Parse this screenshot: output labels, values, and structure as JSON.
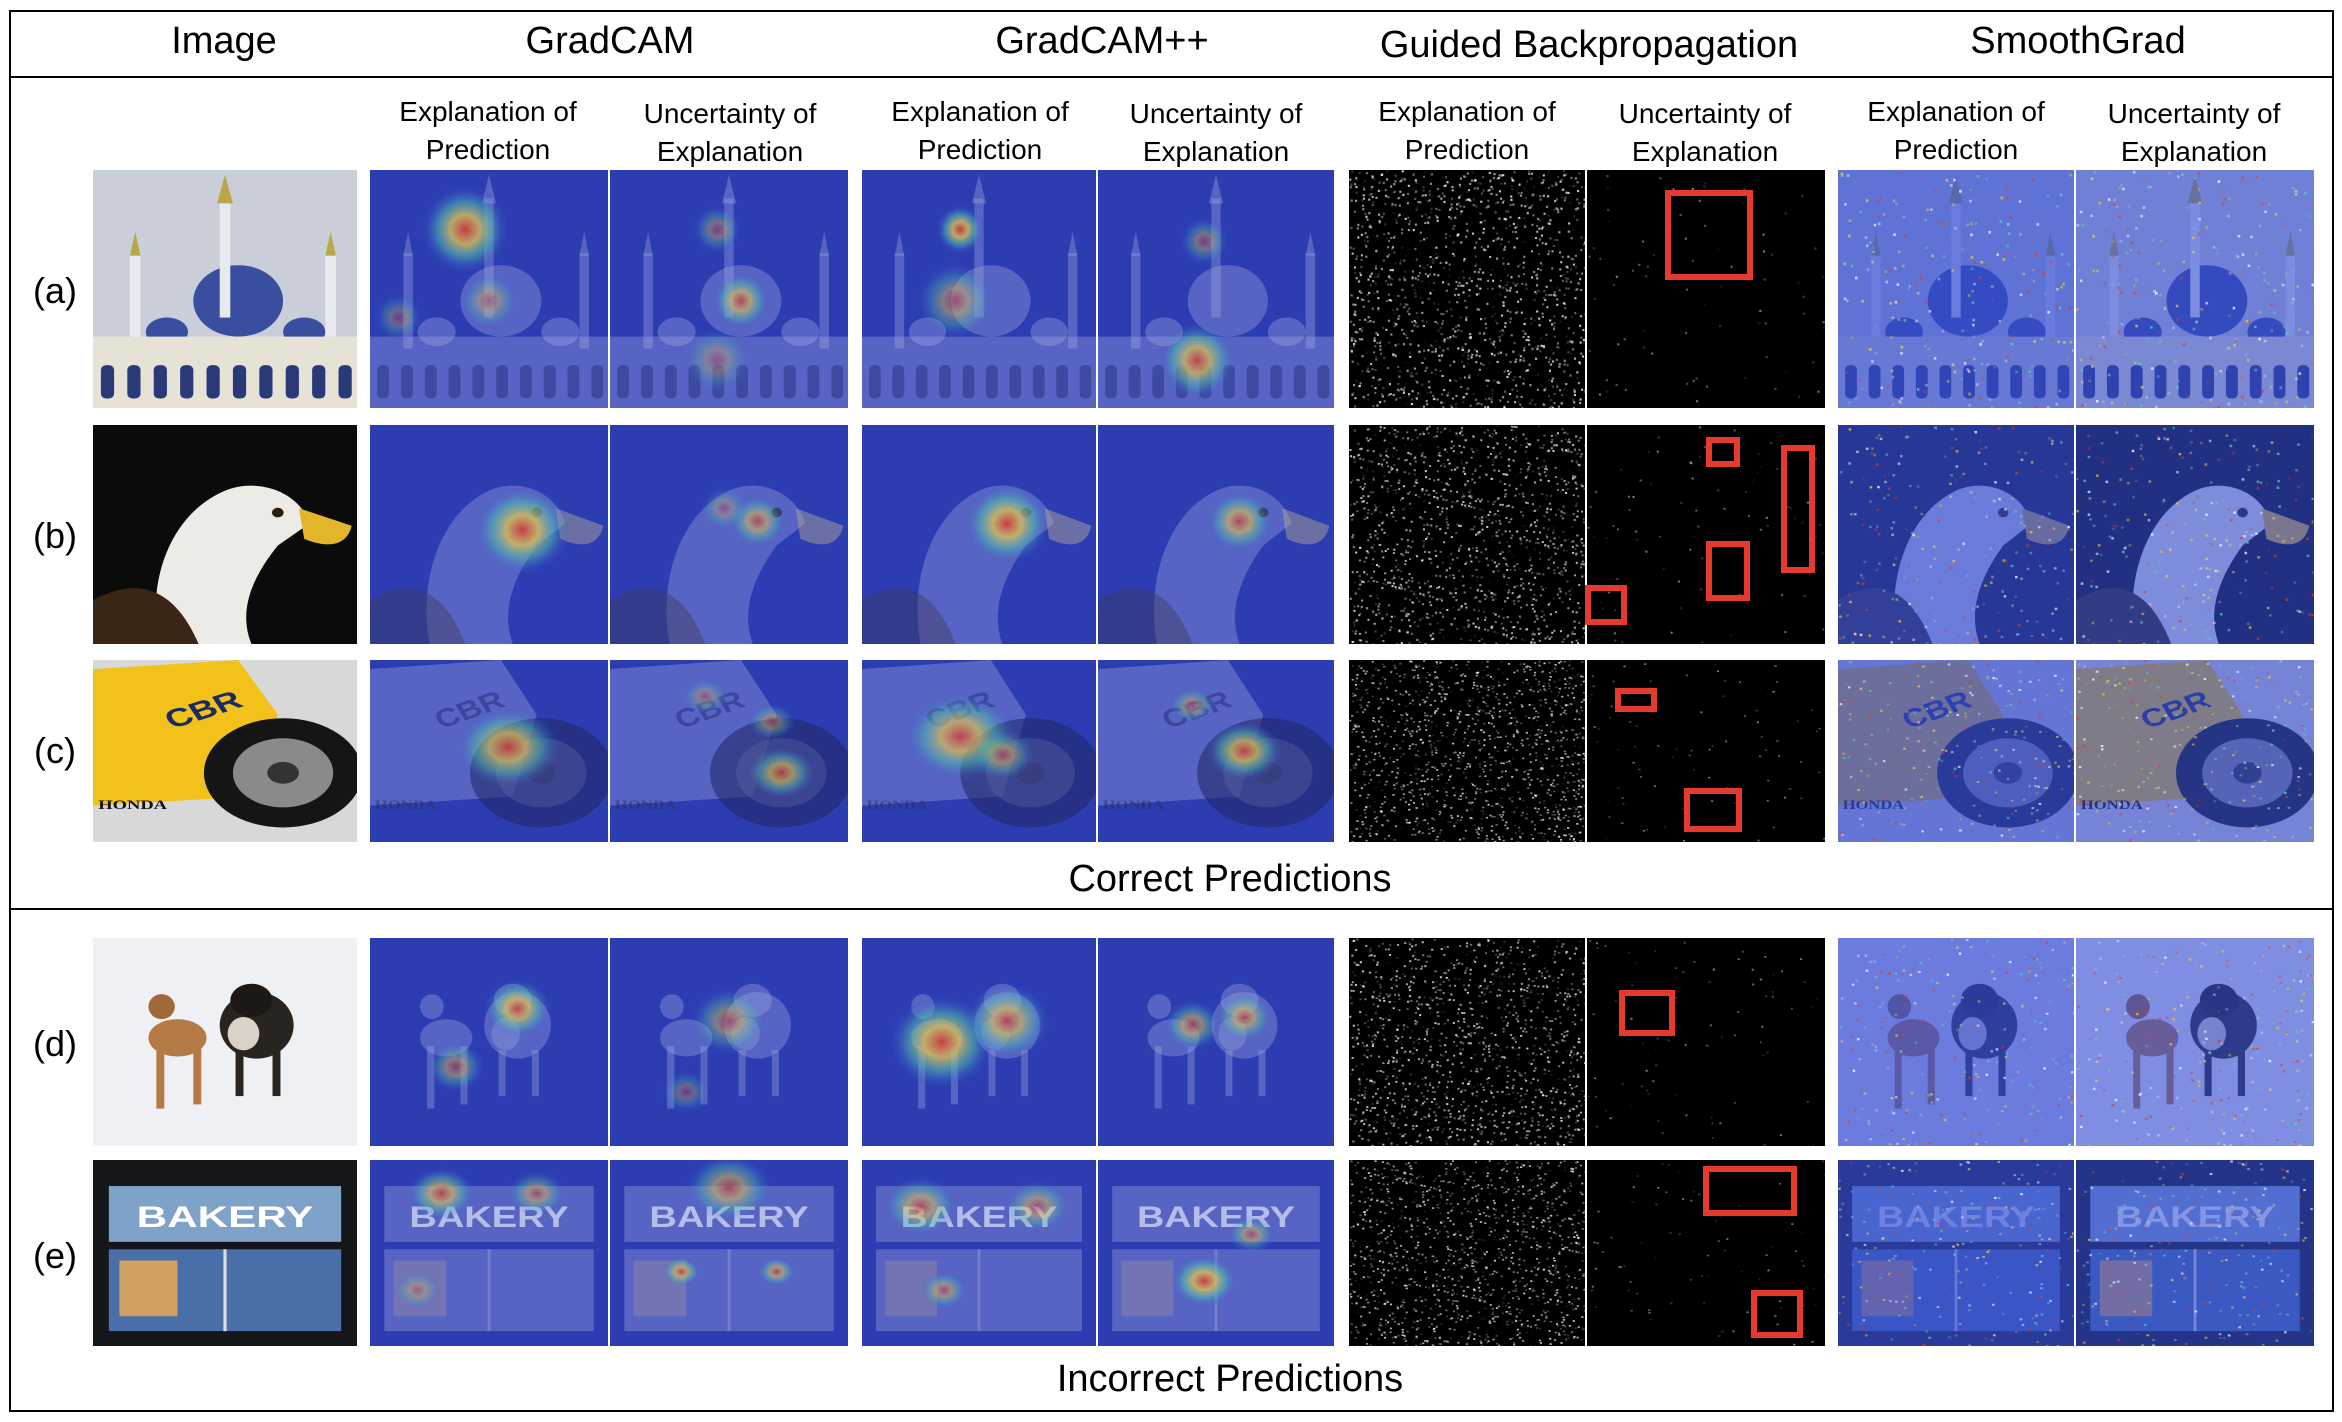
{
  "columns": {
    "image": "Image",
    "gradcam": "GradCAM",
    "gradcampp": "GradCAM++",
    "guided": "Guided Backpropagation",
    "smoothgrad": "SmoothGrad"
  },
  "sub_explanation": [
    "Explanation of",
    "Prediction"
  ],
  "sub_uncertainty": [
    "Uncertainty of",
    "Explanation"
  ],
  "rows": [
    {
      "label": "(a)",
      "subject": "mosque"
    },
    {
      "label": "(b)",
      "subject": "eagle"
    },
    {
      "label": "(c)",
      "subject": "motorcycle"
    },
    {
      "label": "(d)",
      "subject": "dogs"
    },
    {
      "label": "(e)",
      "subject": "bakery"
    }
  ],
  "bakery_sign": "BAKERY",
  "sections": {
    "correct": "Correct Predictions",
    "incorrect": "Incorrect Predictions"
  },
  "colors": {
    "heat_low": "#1e2fa8",
    "heat_high": "#e02a1c",
    "highlight_box": "#e53a2d"
  }
}
